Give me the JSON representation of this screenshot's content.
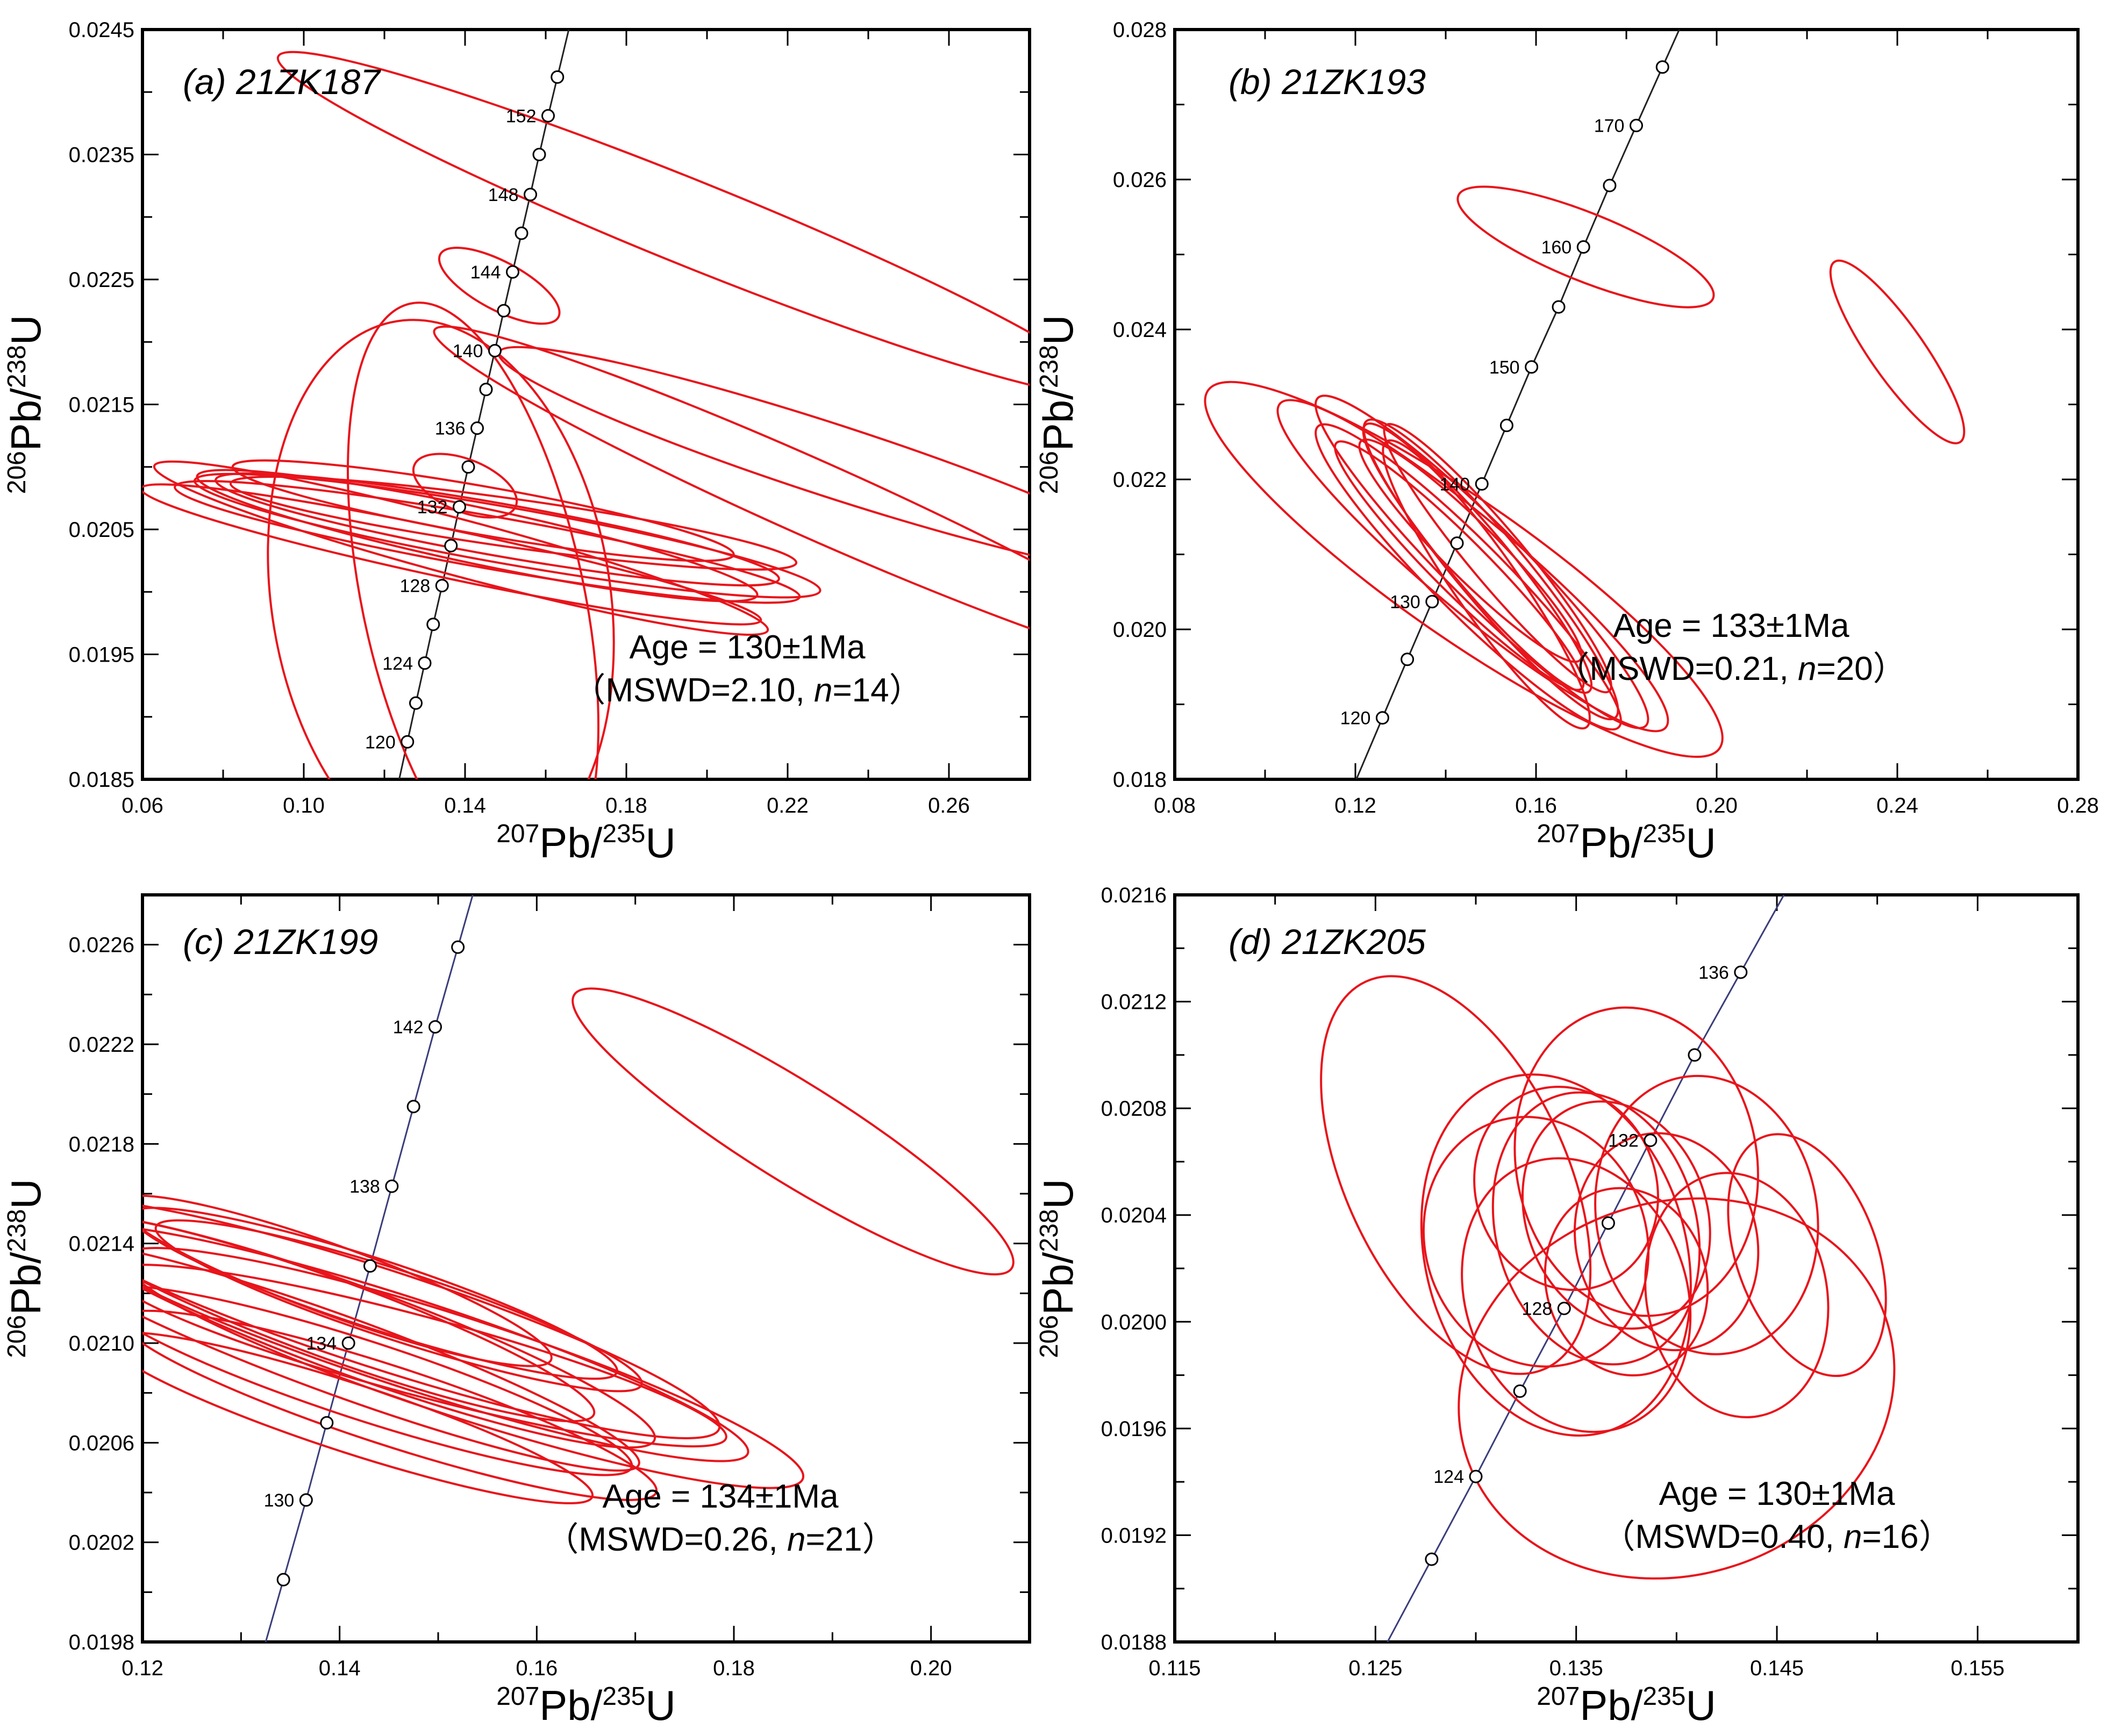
{
  "chart_data": [
    {
      "type": "scatter",
      "panel_label": "(a) 21ZK187",
      "xlabel": {
        "pre": "207",
        "base": "Pb/",
        "sup": "235",
        "tail": "U"
      },
      "ylabel": {
        "pre": "206",
        "base": "Pb/",
        "sup": "238",
        "tail": "U"
      },
      "xlim": [
        0.06,
        0.28
      ],
      "ylim": [
        0.0185,
        0.0245
      ],
      "x_ticks": [
        "0.06",
        "0.10",
        "0.14",
        "0.18",
        "0.22",
        "0.26"
      ],
      "y_ticks": [
        "0.0185",
        "0.0195",
        "0.0205",
        "0.0215",
        "0.0225",
        "0.0235",
        "0.0245"
      ],
      "age": "Age = 130±1Ma",
      "mswd": "MSWD=2.10, ",
      "n_label": "n",
      "n_value": "=14",
      "concordia": [
        {
          "age": 120,
          "x": 0.1257,
          "y": 0.0188,
          "label": "120"
        },
        {
          "age": 122,
          "x": 0.1278,
          "y": 0.01911,
          "label": ""
        },
        {
          "age": 124,
          "x": 0.13,
          "y": 0.01943,
          "label": "124"
        },
        {
          "age": 126,
          "x": 0.1321,
          "y": 0.01974,
          "label": ""
        },
        {
          "age": 128,
          "x": 0.1343,
          "y": 0.02005,
          "label": "128"
        },
        {
          "age": 130,
          "x": 0.1365,
          "y": 0.02037,
          "label": ""
        },
        {
          "age": 132,
          "x": 0.1386,
          "y": 0.02068,
          "label": "132"
        },
        {
          "age": 134,
          "x": 0.1408,
          "y": 0.021,
          "label": ""
        },
        {
          "age": 136,
          "x": 0.143,
          "y": 0.02131,
          "label": "136"
        },
        {
          "age": 138,
          "x": 0.1452,
          "y": 0.02162,
          "label": ""
        },
        {
          "age": 140,
          "x": 0.1474,
          "y": 0.02193,
          "label": "140"
        },
        {
          "age": 142,
          "x": 0.1496,
          "y": 0.02225,
          "label": ""
        },
        {
          "age": 144,
          "x": 0.1518,
          "y": 0.02256,
          "label": "144"
        },
        {
          "age": 146,
          "x": 0.154,
          "y": 0.02287,
          "label": ""
        },
        {
          "age": 148,
          "x": 0.1562,
          "y": 0.02318,
          "label": "148"
        },
        {
          "age": 150,
          "x": 0.1584,
          "y": 0.0235,
          "label": ""
        },
        {
          "age": 152,
          "x": 0.1606,
          "y": 0.02381,
          "label": "152"
        },
        {
          "age": 154,
          "x": 0.1629,
          "y": 0.02412,
          "label": ""
        }
      ],
      "ellipses": [
        {
          "cx": 0.1485,
          "cy": 0.02245,
          "rx": 0.006,
          "ry": 0.001,
          "angle": 62
        },
        {
          "cx": 0.14,
          "cy": 0.02085,
          "rx": 0.0065,
          "ry": 0.0008,
          "angle": 68
        },
        {
          "cx": 0.196,
          "cy": 0.02295,
          "rx": 0.0105,
          "ry": 0.007,
          "angle": 68
        },
        {
          "cx": 0.226,
          "cy": 0.02075,
          "rx": 0.0095,
          "ry": 0.0065,
          "angle": 66
        },
        {
          "cx": 0.231,
          "cy": 0.02105,
          "rx": 0.009,
          "ry": 0.0055,
          "angle": 72
        },
        {
          "cx": 0.134,
          "cy": 0.01995,
          "rx": 0.042,
          "ry": 0.004,
          "angle": 9
        },
        {
          "cx": 0.142,
          "cy": 0.01995,
          "rx": 0.0275,
          "ry": 0.0045,
          "angle": 12
        },
        {
          "cx": 0.139,
          "cy": 0.02035,
          "rx": 0.007,
          "ry": 0.005,
          "angle": 75
        },
        {
          "cx": 0.143,
          "cy": 0.02045,
          "rx": 0.007,
          "ry": 0.0045,
          "angle": 78
        },
        {
          "cx": 0.1455,
          "cy": 0.0204,
          "rx": 0.0065,
          "ry": 0.005,
          "angle": 80
        },
        {
          "cx": 0.148,
          "cy": 0.0205,
          "rx": 0.0065,
          "ry": 0.0045,
          "angle": 80
        },
        {
          "cx": 0.1505,
          "cy": 0.02045,
          "rx": 0.007,
          "ry": 0.005,
          "angle": 80
        },
        {
          "cx": 0.152,
          "cy": 0.02055,
          "rx": 0.006,
          "ry": 0.0045,
          "angle": 82
        },
        {
          "cx": 0.1365,
          "cy": 0.0203,
          "rx": 0.006,
          "ry": 0.005,
          "angle": 78
        },
        {
          "cx": 0.1445,
          "cy": 0.02065,
          "rx": 0.006,
          "ry": 0.004,
          "angle": 80
        }
      ]
    },
    {
      "type": "scatter",
      "panel_label": "(b) 21ZK193",
      "xlabel": {
        "pre": "207",
        "base": "Pb/",
        "sup": "235",
        "tail": "U"
      },
      "ylabel": {
        "pre": "206",
        "base": "Pb/",
        "sup": "238",
        "tail": "U"
      },
      "xlim": [
        0.08,
        0.28
      ],
      "ylim": [
        0.018,
        0.028
      ],
      "x_ticks": [
        "0.08",
        "0.12",
        "0.16",
        "0.20",
        "0.24",
        "0.28"
      ],
      "y_ticks": [
        "0.018",
        "0.020",
        "0.022",
        "0.024",
        "0.026",
        "0.028"
      ],
      "age": "Age = 133±1Ma",
      "mswd": "MSWD=0.21, ",
      "n_label": "n",
      "n_value": "=20",
      "concordia": [
        {
          "age": 120,
          "x": 0.126,
          "y": 0.01882,
          "label": "120"
        },
        {
          "age": 125,
          "x": 0.1315,
          "y": 0.0196,
          "label": ""
        },
        {
          "age": 130,
          "x": 0.137,
          "y": 0.02037,
          "label": "130"
        },
        {
          "age": 135,
          "x": 0.1425,
          "y": 0.02115,
          "label": ""
        },
        {
          "age": 140,
          "x": 0.148,
          "y": 0.02194,
          "label": "140"
        },
        {
          "age": 145,
          "x": 0.1535,
          "y": 0.02272,
          "label": ""
        },
        {
          "age": 150,
          "x": 0.159,
          "y": 0.0235,
          "label": "150"
        },
        {
          "age": 155,
          "x": 0.165,
          "y": 0.0243,
          "label": ""
        },
        {
          "age": 160,
          "x": 0.1705,
          "y": 0.0251,
          "label": "160"
        },
        {
          "age": 165,
          "x": 0.1763,
          "y": 0.02592,
          "label": ""
        },
        {
          "age": 170,
          "x": 0.1822,
          "y": 0.02672,
          "label": "170"
        },
        {
          "age": 175,
          "x": 0.188,
          "y": 0.0275,
          "label": ""
        }
      ],
      "ellipses": [
        {
          "cx": 0.171,
          "cy": 0.0251,
          "rx": 0.0075,
          "ry": 0.0035,
          "angle": 68
        },
        {
          "cx": 0.24,
          "cy": 0.0237,
          "rx": 0.006,
          "ry": 0.0028,
          "angle": 35
        },
        {
          "cx": 0.144,
          "cy": 0.0208,
          "rx": 0.015,
          "ry": 0.008,
          "angle": 55
        },
        {
          "cx": 0.146,
          "cy": 0.02085,
          "rx": 0.01,
          "ry": 0.0065,
          "angle": 50
        },
        {
          "cx": 0.148,
          "cy": 0.0209,
          "rx": 0.0085,
          "ry": 0.006,
          "angle": 45
        },
        {
          "cx": 0.145,
          "cy": 0.0207,
          "rx": 0.008,
          "ry": 0.0055,
          "angle": 45
        },
        {
          "cx": 0.15,
          "cy": 0.0208,
          "rx": 0.0075,
          "ry": 0.005,
          "angle": 40
        },
        {
          "cx": 0.147,
          "cy": 0.02095,
          "rx": 0.0065,
          "ry": 0.0045,
          "angle": 40
        },
        {
          "cx": 0.143,
          "cy": 0.02085,
          "rx": 0.006,
          "ry": 0.0045,
          "angle": 45
        },
        {
          "cx": 0.1515,
          "cy": 0.02095,
          "rx": 0.006,
          "ry": 0.0045,
          "angle": 40
        },
        {
          "cx": 0.149,
          "cy": 0.0206,
          "rx": 0.007,
          "ry": 0.0045,
          "angle": 35
        },
        {
          "cx": 0.1455,
          "cy": 0.02105,
          "rx": 0.006,
          "ry": 0.004,
          "angle": 45
        }
      ]
    },
    {
      "type": "scatter",
      "panel_label": "(c) 21ZK199",
      "xlabel": {
        "pre": "207",
        "base": "Pb/",
        "sup": "235",
        "tail": "U"
      },
      "ylabel": {
        "pre": "206",
        "base": "Pb/",
        "sup": "238",
        "tail": "U"
      },
      "xlim": [
        0.12,
        0.21
      ],
      "ylim": [
        0.0198,
        0.0228
      ],
      "x_ticks": [
        "0.12",
        "0.14",
        "0.16",
        "0.18",
        "0.20"
      ],
      "y_ticks": [
        "0.0198",
        "0.0202",
        "0.0206",
        "0.0210",
        "0.0214",
        "0.0218",
        "0.0222",
        "0.0226"
      ],
      "age": "Age = 134±1Ma",
      "mswd": "MSWD=0.26, ",
      "n_label": "n",
      "n_value": "=21",
      "concordia": [
        {
          "age": 128,
          "x": 0.1343,
          "y": 0.02005,
          "label": ""
        },
        {
          "age": 130,
          "x": 0.1366,
          "y": 0.02037,
          "label": "130"
        },
        {
          "age": 132,
          "x": 0.1387,
          "y": 0.02068,
          "label": ""
        },
        {
          "age": 134,
          "x": 0.1409,
          "y": 0.021,
          "label": "134"
        },
        {
          "age": 136,
          "x": 0.1431,
          "y": 0.02131,
          "label": ""
        },
        {
          "age": 138,
          "x": 0.1453,
          "y": 0.02163,
          "label": "138"
        },
        {
          "age": 140,
          "x": 0.1475,
          "y": 0.02195,
          "label": ""
        },
        {
          "age": 142,
          "x": 0.1497,
          "y": 0.02227,
          "label": "142"
        },
        {
          "age": 144,
          "x": 0.152,
          "y": 0.02259,
          "label": ""
        }
      ],
      "ellipses": [
        {
          "cx": 0.186,
          "cy": 0.02185,
          "rx": 0.005,
          "ry": 0.002,
          "angle": 58
        },
        {
          "cx": 0.1525,
          "cy": 0.0209,
          "rx": 0.005,
          "ry": 0.0028,
          "angle": 72
        },
        {
          "cx": 0.147,
          "cy": 0.021,
          "rx": 0.0045,
          "ry": 0.0028,
          "angle": 72
        },
        {
          "cx": 0.144,
          "cy": 0.0211,
          "rx": 0.005,
          "ry": 0.0028,
          "angle": 72
        },
        {
          "cx": 0.1415,
          "cy": 0.02105,
          "rx": 0.0045,
          "ry": 0.0025,
          "angle": 70
        },
        {
          "cx": 0.14,
          "cy": 0.02095,
          "rx": 0.004,
          "ry": 0.0025,
          "angle": 70
        },
        {
          "cx": 0.139,
          "cy": 0.0211,
          "rx": 0.004,
          "ry": 0.0022,
          "angle": 70
        },
        {
          "cx": 0.1425,
          "cy": 0.02085,
          "rx": 0.004,
          "ry": 0.0022,
          "angle": 72
        },
        {
          "cx": 0.145,
          "cy": 0.02075,
          "rx": 0.004,
          "ry": 0.0022,
          "angle": 72
        },
        {
          "cx": 0.1435,
          "cy": 0.0212,
          "rx": 0.0035,
          "ry": 0.002,
          "angle": 72
        },
        {
          "cx": 0.146,
          "cy": 0.02115,
          "rx": 0.0035,
          "ry": 0.002,
          "angle": 72
        },
        {
          "cx": 0.141,
          "cy": 0.0207,
          "rx": 0.0035,
          "ry": 0.002,
          "angle": 72
        },
        {
          "cx": 0.148,
          "cy": 0.02095,
          "rx": 0.004,
          "ry": 0.0025,
          "angle": 75
        },
        {
          "cx": 0.1395,
          "cy": 0.02125,
          "rx": 0.0035,
          "ry": 0.0018,
          "angle": 70
        }
      ]
    },
    {
      "type": "scatter",
      "panel_label": "(d) 21ZK205",
      "xlabel": {
        "pre": "207",
        "base": "Pb/",
        "sup": "235",
        "tail": "U"
      },
      "ylabel": {
        "pre": "206",
        "base": "Pb/",
        "sup": "238",
        "tail": "U"
      },
      "xlim": [
        0.115,
        0.16
      ],
      "ylim": [
        0.0188,
        0.0216
      ],
      "x_ticks": [
        "0.115",
        "0.125",
        "0.135",
        "0.145",
        "0.155"
      ],
      "y_ticks": [
        "0.0188",
        "0.0192",
        "0.0196",
        "0.0200",
        "0.0204",
        "0.0208",
        "0.0212",
        "0.0216"
      ],
      "age": "Age = 130±1Ma",
      "mswd": "MSWD=0.40, ",
      "n_label": "n",
      "n_value": "=16",
      "concordia": [
        {
          "age": 122,
          "x": 0.1278,
          "y": 0.01911,
          "label": ""
        },
        {
          "age": 124,
          "x": 0.13,
          "y": 0.01942,
          "label": "124"
        },
        {
          "age": 126,
          "x": 0.1322,
          "y": 0.01974,
          "label": ""
        },
        {
          "age": 128,
          "x": 0.1344,
          "y": 0.02005,
          "label": "128"
        },
        {
          "age": 130,
          "x": 0.1366,
          "y": 0.02037,
          "label": ""
        },
        {
          "age": 132,
          "x": 0.1387,
          "y": 0.02068,
          "label": "132"
        },
        {
          "age": 134,
          "x": 0.1409,
          "y": 0.021,
          "label": ""
        },
        {
          "age": 136,
          "x": 0.1432,
          "y": 0.02131,
          "label": "136"
        }
      ],
      "ellipses": [
        {
          "cx": 0.129,
          "cy": 0.02055,
          "rx": 0.0055,
          "ry": 0.00145,
          "angle": 25
        },
        {
          "cx": 0.134,
          "cy": 0.02025,
          "rx": 0.0065,
          "ry": 0.0012,
          "angle": 15
        },
        {
          "cx": 0.138,
          "cy": 0.0206,
          "rx": 0.006,
          "ry": 0.001,
          "angle": 10
        },
        {
          "cx": 0.136,
          "cy": 0.02035,
          "rx": 0.005,
          "ry": 0.0009,
          "angle": 15
        },
        {
          "cx": 0.135,
          "cy": 0.0201,
          "rx": 0.0055,
          "ry": 0.0009,
          "angle": 20
        },
        {
          "cx": 0.137,
          "cy": 0.0204,
          "rx": 0.0045,
          "ry": 0.00075,
          "angle": 20
        },
        {
          "cx": 0.1395,
          "cy": 0.0203,
          "rx": 0.0045,
          "ry": 0.0007,
          "angle": 15
        },
        {
          "cx": 0.1375,
          "cy": 0.02015,
          "rx": 0.004,
          "ry": 0.0006,
          "angle": 15
        },
        {
          "cx": 0.1415,
          "cy": 0.0204,
          "rx": 0.0055,
          "ry": 0.0009,
          "angle": 10
        },
        {
          "cx": 0.143,
          "cy": 0.0201,
          "rx": 0.0045,
          "ry": 0.0008,
          "angle": 10
        },
        {
          "cx": 0.1465,
          "cy": 0.02025,
          "rx": 0.0035,
          "ry": 0.00085,
          "angle": 20
        },
        {
          "cx": 0.14,
          "cy": 0.01975,
          "rx": 0.011,
          "ry": 0.0011,
          "angle": 18
        },
        {
          "cx": 0.133,
          "cy": 0.0203,
          "rx": 0.0055,
          "ry": 0.0008,
          "angle": 20
        },
        {
          "cx": 0.1345,
          "cy": 0.0205,
          "rx": 0.0045,
          "ry": 0.00065,
          "angle": 20
        }
      ]
    }
  ]
}
